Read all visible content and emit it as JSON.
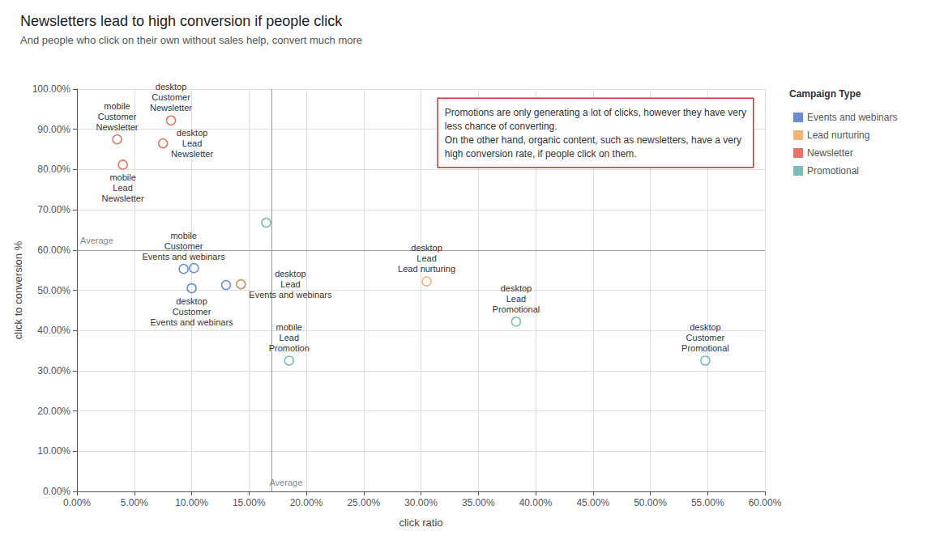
{
  "chart_data": {
    "type": "scatter",
    "title": "Newsletters lead to high conversion if people click",
    "subtitle": "And people who click on their own without sales help, convert much more",
    "xlabel": "click ratio",
    "ylabel": "click to conversion %",
    "xlim": [
      0.0,
      0.6
    ],
    "ylim": [
      0.0,
      1.0
    ],
    "xticks": [
      {
        "value": 0.0,
        "label": "0.00%"
      },
      {
        "value": 0.05,
        "label": "5.00%"
      },
      {
        "value": 0.1,
        "label": "10.00%"
      },
      {
        "value": 0.15,
        "label": "15.00%"
      },
      {
        "value": 0.2,
        "label": "20.00%"
      },
      {
        "value": 0.25,
        "label": "25.00%"
      },
      {
        "value": 0.3,
        "label": "30.00%"
      },
      {
        "value": 0.35,
        "label": "35.00%"
      },
      {
        "value": 0.4,
        "label": "40.00%"
      },
      {
        "value": 0.45,
        "label": "45.00%"
      },
      {
        "value": 0.5,
        "label": "50.00%"
      },
      {
        "value": 0.55,
        "label": "55.00%"
      },
      {
        "value": 0.6,
        "label": "60.00%"
      }
    ],
    "yticks": [
      {
        "value": 0.0,
        "label": "0.00%"
      },
      {
        "value": 0.1,
        "label": "10.00%"
      },
      {
        "value": 0.2,
        "label": "20.00%"
      },
      {
        "value": 0.3,
        "label": "30.00%"
      },
      {
        "value": 0.4,
        "label": "40.00%"
      },
      {
        "value": 0.5,
        "label": "50.00%"
      },
      {
        "value": 0.6,
        "label": "60.00%"
      },
      {
        "value": 0.7,
        "label": "70.00%"
      },
      {
        "value": 0.8,
        "label": "80.00%"
      },
      {
        "value": 0.9,
        "label": "90.00%"
      },
      {
        "value": 1.0,
        "label": "100.00%"
      }
    ],
    "grid": true,
    "legend": "right",
    "legend_title": "Campaign Type",
    "series": [
      {
        "name": "Events and webinars",
        "color": "#4472c4",
        "x": [
          0.093,
          0.102,
          0.1,
          0.13,
          0.143
        ],
        "values": [
          0.553,
          0.555,
          0.505,
          0.513,
          0.515
        ],
        "labels": [
          "mobile\nCustomer\nEvents and webinars",
          null,
          "desktop\nCustomer\nEvents and webinars",
          null,
          "desktop\nLead\nEvents and webinars"
        ]
      },
      {
        "name": "Lead nurturing",
        "color": "#f0a050",
        "x": [
          0.143,
          0.305
        ],
        "values": [
          0.515,
          0.522
        ],
        "labels": [
          null,
          "desktop\nLead\nLead nurturing"
        ]
      },
      {
        "name": "Newsletter",
        "color": "#e05040",
        "x": [
          0.035,
          0.082,
          0.075,
          0.04
        ],
        "values": [
          0.875,
          0.922,
          0.865,
          0.812
        ],
        "labels": [
          "mobile\nCustomer\nNewsletter",
          "desktop\nCustomer\nNewsletter",
          "desktop\nLead\nNewsletter",
          "mobile\nLead\nNewsletter"
        ]
      },
      {
        "name": "Promotional",
        "color": "#5aaba0",
        "x": [
          0.165,
          0.185,
          0.383,
          0.548
        ],
        "values": [
          0.668,
          0.325,
          0.422,
          0.325
        ],
        "labels": [
          null,
          "mobile\nLead\nPromotion",
          "desktop\nLead\nPromotional",
          "desktop\nCustomer\nPromotional"
        ]
      }
    ],
    "reference_lines": [
      {
        "axis": "y",
        "value": 0.6,
        "label": "Average"
      },
      {
        "axis": "x",
        "value": 0.165,
        "label": "Average"
      }
    ],
    "annotations": [
      {
        "text": "Promotions are only generating a lot of clicks, however they have very\nless chance of converting.\nOn the other hand, organic content, such as newsletters, have a very\nhigh conversion rate, if people click on them."
      }
    ]
  }
}
